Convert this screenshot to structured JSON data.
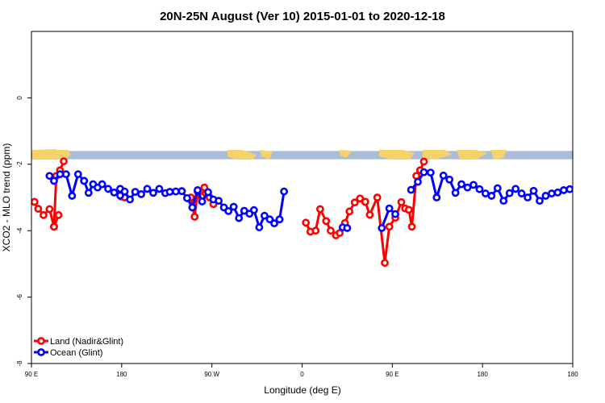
{
  "chart_data": {
    "type": "line",
    "title": "20N-25N August (Ver 10)   2015-01-01 to 2020-12-18",
    "xlabel": "Longitude (deg E)",
    "ylabel": "XCO2 - MLO trend (ppm)",
    "xlim": [
      30,
      390
    ],
    "ylim": [
      -8,
      2
    ],
    "x_ticks": [
      {
        "value": 30,
        "label": "90 E"
      },
      {
        "value": 90,
        "label": "180"
      },
      {
        "value": 150,
        "label": "90 W"
      },
      {
        "value": 210,
        "label": "0"
      },
      {
        "value": 270,
        "label": "90 E"
      },
      {
        "value": 330,
        "label": "180"
      },
      {
        "value": 390,
        "label": "180"
      }
    ],
    "y_ticks": [
      -8,
      -6,
      -4,
      -2,
      0
    ],
    "map_strip": {
      "y_range": [
        -1.85,
        -1.6
      ],
      "ocean_color": "#a9bdd8",
      "land_color": "#f5d26a"
    },
    "legend_position": "bottom-left",
    "series": [
      {
        "name": "Land (Nadir&Glint)",
        "color": "#ff0000",
        "segments": [
          {
            "x": [
              32,
              34.5,
              38,
              42,
              45,
              48
            ],
            "y": [
              -3.13,
              -3.34,
              -3.53,
              -3.35,
              -3.88,
              -3.53
            ]
          },
          {
            "x": [
              45,
              46.5,
              49,
              51.5
            ],
            "y": [
              -3.88,
              -2.35,
              -2.18,
              -1.91
            ]
          },
          {
            "x": [
              89.5,
              92
            ],
            "y": [
              -2.97,
              -3.0
            ]
          },
          {
            "x": [
              136,
              138.5,
              140.5,
              143,
              145,
              148.5,
              151
            ],
            "y": [
              -3.0,
              -3.58,
              -2.82,
              -2.98,
              -2.7,
              -3.0,
              -3.2
            ]
          },
          {
            "x": [
              212.5,
              215.5,
              219,
              222,
              226,
              229,
              232.5,
              235,
              238.5,
              241.5,
              245,
              248.5,
              252
            ],
            "y": [
              -3.76,
              -4.03,
              -4.0,
              -3.35,
              -3.71,
              -4.0,
              -4.14,
              -4.07,
              -3.77,
              -3.42,
              -3.15,
              -3.03,
              -3.13
            ]
          },
          {
            "x": [
              252,
              255,
              260,
              265,
              268,
              272,
              276,
              278.5,
              281,
              283,
              286
            ],
            "y": [
              -3.13,
              -3.52,
              -3.0,
              -4.97,
              -3.88,
              -3.61,
              -3.14,
              -3.33,
              -3.37,
              -3.88,
              -2.35
            ]
          },
          {
            "x": [
              286,
              288.5,
              291
            ],
            "y": [
              -2.35,
              -2.18,
              -1.92
            ]
          }
        ]
      },
      {
        "name": "Ocean (Glint)",
        "color": "#0000ff",
        "segments": [
          {
            "x": [
              42,
              45,
              49,
              53,
              57,
              61,
              65
            ],
            "y": [
              -2.35,
              -2.5,
              -2.3,
              -2.3,
              -2.95,
              -2.3,
              -2.5
            ]
          },
          {
            "x": [
              65,
              68,
              71,
              74,
              77,
              81,
              85,
              89
            ],
            "y": [
              -2.5,
              -2.86,
              -2.6,
              -2.7,
              -2.6,
              -2.74,
              -2.85,
              -2.94
            ]
          },
          {
            "x": [
              89,
              92,
              95.5,
              99,
              103,
              107,
              111,
              115,
              119,
              122,
              126,
              130
            ],
            "y": [
              -2.74,
              -2.82,
              -3.06,
              -2.83,
              -2.9,
              -2.74,
              -2.86,
              -2.74,
              -2.87,
              -2.83,
              -2.82,
              -2.81
            ]
          },
          {
            "x": [
              130,
              133.5,
              137,
              140.5,
              143.5,
              147.5,
              151,
              154.5,
              158,
              161,
              164.5,
              168,
              171.5,
              175,
              178,
              181.5,
              185,
              188.5,
              191.5,
              195
            ],
            "y": [
              -2.81,
              -3.02,
              -3.3,
              -2.78,
              -3.12,
              -2.84,
              -3.06,
              -3.1,
              -3.3,
              -3.41,
              -3.28,
              -3.62,
              -3.4,
              -3.49,
              -3.38,
              -3.9,
              -3.55,
              -3.66,
              -3.78,
              -3.66
            ]
          },
          {
            "x": [
              195,
              198
            ],
            "y": [
              -3.66,
              -2.82
            ]
          },
          {
            "x": [
              237,
              240
            ],
            "y": [
              -3.9,
              -3.92
            ]
          },
          {
            "x": [
              263,
              268,
              272
            ],
            "y": [
              -3.92,
              -3.33,
              -3.5
            ]
          },
          {
            "x": [
              282.5,
              287,
              291,
              295.5,
              299.5,
              304,
              308,
              312,
              316,
              320,
              324,
              328,
              332,
              336,
              340,
              344,
              348,
              352,
              356,
              360,
              364,
              368,
              372,
              376,
              380,
              384,
              388
            ],
            "y": [
              -2.77,
              -2.53,
              -2.24,
              -2.25,
              -3.0,
              -2.34,
              -2.46,
              -2.86,
              -2.6,
              -2.7,
              -2.62,
              -2.75,
              -2.88,
              -2.95,
              -2.72,
              -3.1,
              -2.87,
              -2.74,
              -2.88,
              -3.0,
              -2.8,
              -3.1,
              -2.95,
              -2.88,
              -2.85,
              -2.78,
              -2.75
            ]
          }
        ]
      }
    ]
  }
}
